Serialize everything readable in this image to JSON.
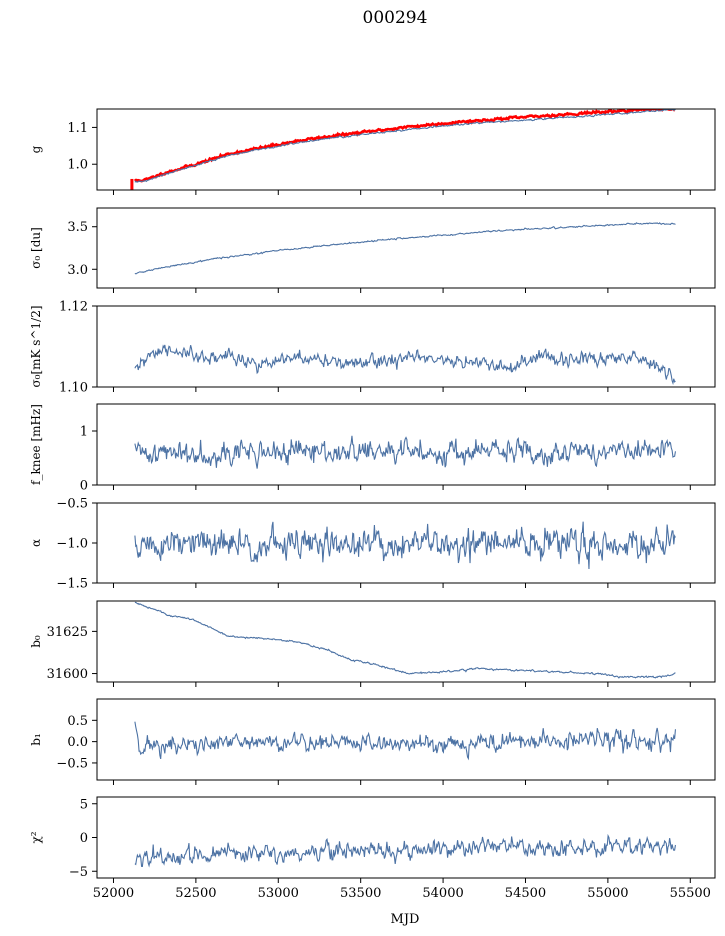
{
  "title": "000294",
  "chart_data": {
    "type": "line",
    "xlabel": "MJD",
    "xlim": [
      51900,
      55650
    ],
    "x_ticks": [
      "52000",
      "52500",
      "53000",
      "53500",
      "54000",
      "54500",
      "55000",
      "55500"
    ],
    "x_start": 52130,
    "x_end": 55410,
    "line_color": "#4c72a4",
    "panels": [
      {
        "key": "g",
        "ylabel": "g",
        "ylim": [
          0.93,
          1.15
        ],
        "yticks": [
          1.0,
          1.1
        ],
        "ytick_labels": [
          "1.0",
          "1.1"
        ],
        "series": [
          {
            "name": "",
            "color": "#ff0000",
            "noise": 0.0015,
            "seed": 11,
            "points": [
              [
                52130,
                0.955
              ],
              [
                52200,
                0.958
              ],
              [
                52300,
                0.975
              ],
              [
                52500,
                1.0
              ],
              [
                52700,
                1.028
              ],
              [
                52900,
                1.045
              ],
              [
                53100,
                1.062
              ],
              [
                53300,
                1.075
              ],
              [
                53500,
                1.086
              ],
              [
                53800,
                1.102
              ],
              [
                54100,
                1.115
              ],
              [
                54500,
                1.128
              ],
              [
                54900,
                1.14
              ],
              [
                55200,
                1.148
              ],
              [
                55410,
                1.152
              ]
            ]
          },
          {
            "name": "",
            "color": "#4c72a4",
            "noise": 0.001,
            "seed": 12,
            "points": [
              [
                52130,
                0.952
              ],
              [
                52200,
                0.955
              ],
              [
                52300,
                0.972
              ],
              [
                52500,
                0.997
              ],
              [
                52700,
                1.024
              ],
              [
                52900,
                1.041
              ],
              [
                53100,
                1.057
              ],
              [
                53300,
                1.07
              ],
              [
                53500,
                1.08
              ],
              [
                53800,
                1.095
              ],
              [
                54100,
                1.108
              ],
              [
                54500,
                1.12
              ],
              [
                54900,
                1.132
              ],
              [
                55200,
                1.142
              ],
              [
                55410,
                1.149
              ]
            ]
          }
        ]
      },
      {
        "key": "sigma0du",
        "ylabel": "σ₀ [du]",
        "ylim": [
          2.78,
          3.72
        ],
        "yticks": [
          3.0,
          3.5
        ],
        "ytick_labels": [
          "3.0",
          "3.5"
        ],
        "series": [
          {
            "name": "",
            "color": "#4c72a4",
            "noise": 0.004,
            "seed": 21,
            "points": [
              [
                52130,
                2.95
              ],
              [
                52300,
                3.02
              ],
              [
                52600,
                3.12
              ],
              [
                53000,
                3.22
              ],
              [
                53300,
                3.28
              ],
              [
                53600,
                3.34
              ],
              [
                54000,
                3.4
              ],
              [
                54300,
                3.45
              ],
              [
                54700,
                3.49
              ],
              [
                55000,
                3.52
              ],
              [
                55250,
                3.54
              ],
              [
                55410,
                3.53
              ]
            ]
          }
        ]
      },
      {
        "key": "sigma0mK",
        "ylabel": "σ₀[mK s^1/2]",
        "ylim": [
          1.1,
          1.12
        ],
        "yticks": [
          1.1,
          1.12
        ],
        "ytick_labels": [
          "1.10",
          "1.12"
        ],
        "series": [
          {
            "name": "",
            "color": "#4c72a4",
            "noise": 0.0008,
            "seed": 31,
            "points": [
              [
                52130,
                1.1035
              ],
              [
                52230,
                1.1085
              ],
              [
                52400,
                1.109
              ],
              [
                52550,
                1.1065
              ],
              [
                52700,
                1.108
              ],
              [
                52900,
                1.1055
              ],
              [
                53100,
                1.107
              ],
              [
                53350,
                1.1065
              ],
              [
                53500,
                1.1055
              ],
              [
                53800,
                1.1075
              ],
              [
                54000,
                1.106
              ],
              [
                54250,
                1.1065
              ],
              [
                54400,
                1.104
              ],
              [
                54600,
                1.1075
              ],
              [
                54900,
                1.1065
              ],
              [
                55100,
                1.1075
              ],
              [
                55250,
                1.107
              ],
              [
                55350,
                1.104
              ],
              [
                55410,
                1.102
              ]
            ]
          }
        ]
      },
      {
        "key": "fknee",
        "ylabel": "f_knee [mHz]",
        "ylim": [
          0,
          1.5
        ],
        "yticks": [
          0,
          1
        ],
        "ytick_labels": [
          "0",
          "1"
        ],
        "series": [
          {
            "name": "",
            "color": "#4c72a4",
            "noise": 0.1,
            "seed": 41,
            "points": [
              [
                52130,
                0.6
              ],
              [
                55410,
                0.62
              ]
            ]
          }
        ]
      },
      {
        "key": "alpha",
        "ylabel": "α",
        "ylim": [
          -1.5,
          -0.5
        ],
        "yticks": [
          -1.5,
          -1.0,
          -0.5
        ],
        "ytick_labels": [
          "−1.5",
          "−1.0",
          "−0.5"
        ],
        "series": [
          {
            "name": "",
            "color": "#4c72a4",
            "noise": 0.09,
            "seed": 51,
            "points": [
              [
                52130,
                -1.03
              ],
              [
                55410,
                -1.0
              ]
            ]
          }
        ]
      },
      {
        "key": "b0",
        "ylabel": "b₀",
        "ylim": [
          31595,
          31643
        ],
        "yticks": [
          31600,
          31625
        ],
        "ytick_labels": [
          "31600",
          "31625"
        ],
        "series": [
          {
            "name": "",
            "color": "#4c72a4",
            "noise": 0.25,
            "seed": 61,
            "points": [
              [
                52130,
                31642
              ],
              [
                52250,
                31638
              ],
              [
                52350,
                31634
              ],
              [
                52450,
                31633
              ],
              [
                52550,
                31629
              ],
              [
                52700,
                31622
              ],
              [
                52900,
                31621
              ],
              [
                53100,
                31619
              ],
              [
                53300,
                31614
              ],
              [
                53450,
                31608
              ],
              [
                53600,
                31605
              ],
              [
                53800,
                31600
              ],
              [
                54000,
                31601
              ],
              [
                54200,
                31603
              ],
              [
                54400,
                31602
              ],
              [
                54700,
                31601
              ],
              [
                54900,
                31600
              ],
              [
                55100,
                31598
              ],
              [
                55300,
                31598
              ],
              [
                55410,
                31600
              ]
            ]
          }
        ]
      },
      {
        "key": "b1",
        "ylabel": "b₁",
        "ylim": [
          -0.9,
          1.0
        ],
        "yticks": [
          -0.5,
          0.0,
          0.5
        ],
        "ytick_labels": [
          "−0.5",
          "0.0",
          "0.5"
        ],
        "series": [
          {
            "name": "",
            "color": "#4c72a4",
            "noise": 0.1,
            "seed": 71,
            "points": [
              [
                52130,
                0.5
              ],
              [
                52160,
                -0.1
              ],
              [
                52400,
                -0.1
              ],
              [
                53000,
                0.0
              ],
              [
                53800,
                -0.05
              ],
              [
                54500,
                0.0
              ],
              [
                55000,
                0.05
              ],
              [
                55410,
                0.0
              ]
            ]
          }
        ]
      },
      {
        "key": "chi2",
        "ylabel": "χ²",
        "ylim": [
          -6,
          6
        ],
        "yticks": [
          -5,
          0,
          5
        ],
        "ytick_labels": [
          "−5",
          "0",
          "5"
        ],
        "series": [
          {
            "name": "",
            "color": "#4c72a4",
            "noise": 0.6,
            "seed": 81,
            "points": [
              [
                52130,
                -3.2
              ],
              [
                52300,
                -3.0
              ],
              [
                52600,
                -2.6
              ],
              [
                53000,
                -2.2
              ],
              [
                53500,
                -1.8
              ],
              [
                54000,
                -1.5
              ],
              [
                54500,
                -1.4
              ],
              [
                55000,
                -1.2
              ],
              [
                55410,
                -1.3
              ]
            ]
          }
        ]
      }
    ]
  }
}
